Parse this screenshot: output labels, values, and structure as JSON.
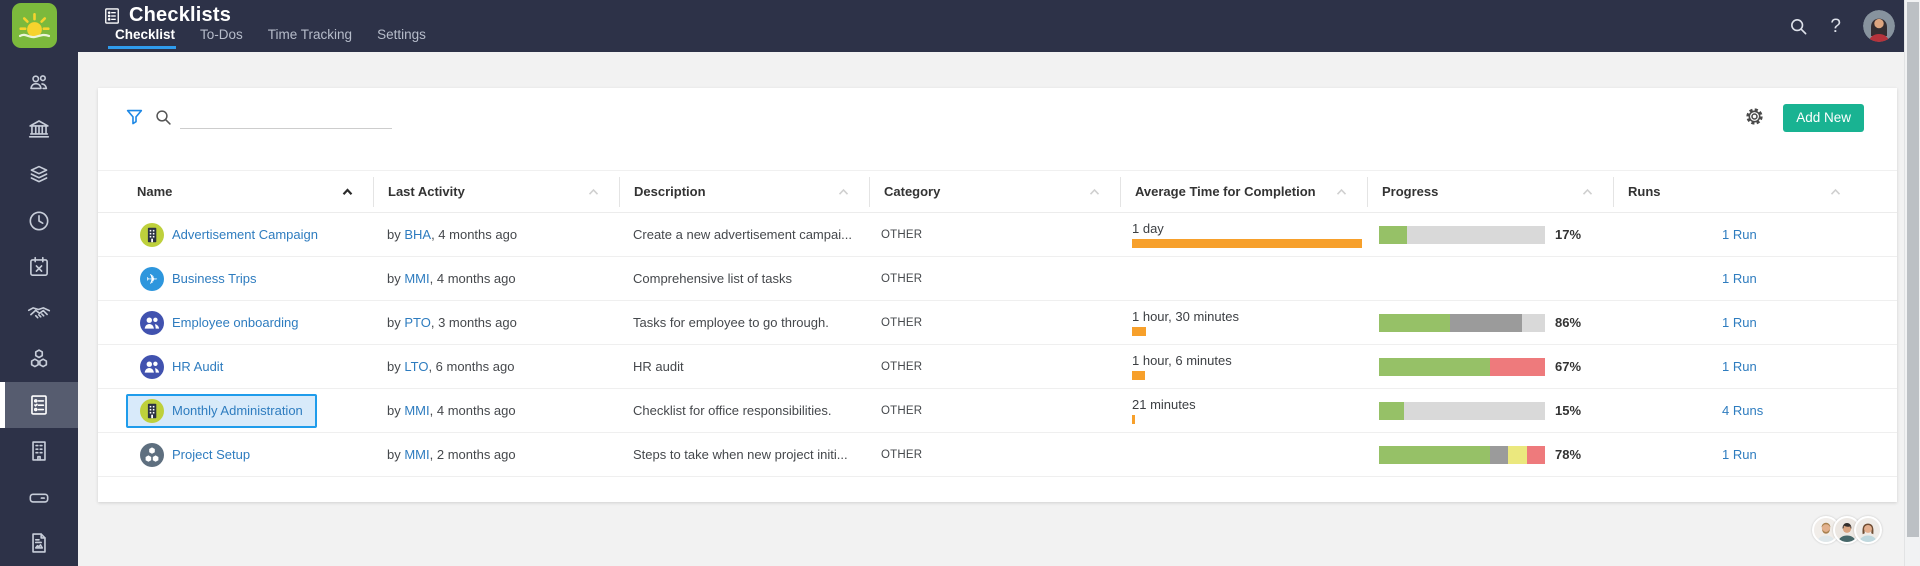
{
  "header": {
    "title": "Checklists",
    "tabs": [
      {
        "label": "Checklist",
        "active": true
      },
      {
        "label": "To-Dos",
        "active": false
      },
      {
        "label": "Time Tracking",
        "active": false
      },
      {
        "label": "Settings",
        "active": false
      }
    ],
    "right_icons": [
      "search-icon",
      "help-icon",
      "user-avatar"
    ],
    "help_glyph": "?"
  },
  "sidebar": {
    "logo_icon": "sun-logo",
    "items": [
      "users",
      "bank",
      "layers",
      "clock",
      "calendar",
      "handshake",
      "cubes",
      "checklists",
      "building",
      "drive",
      "document"
    ],
    "active_item": "checklists"
  },
  "toolbar": {
    "filter_icon": "filter-funnel-icon",
    "search_icon": "search-icon",
    "search_value": "",
    "gear_icon": "settings-gear-icon",
    "add_new_label": "Add New"
  },
  "table": {
    "columns": [
      {
        "label": "Name",
        "sorted": "asc"
      },
      {
        "label": "Last Activity",
        "sorted": null
      },
      {
        "label": "Description",
        "sorted": null
      },
      {
        "label": "Category",
        "sorted": null
      },
      {
        "label": "Average Time for Completion",
        "sorted": null
      },
      {
        "label": "Progress",
        "sorted": null
      },
      {
        "label": "Runs",
        "sorted": null
      }
    ],
    "rows": [
      {
        "name": "Advertisement Campaign",
        "icon": "building",
        "icon_bg": "#bed03c",
        "icon_fg": "#2b3142",
        "activity_by": "by",
        "activity_author": "BHA",
        "activity_rest": ", 4 months ago",
        "description": "Create a new advertisement campai...",
        "category": "OTHER",
        "avg_time": "1 day",
        "avg_bar_pct": 100,
        "progress_label": "17%",
        "progress": [
          [
            "green",
            17
          ],
          [
            "lightgray",
            83
          ]
        ],
        "runs": "1 Run",
        "selected": false
      },
      {
        "name": "Business Trips",
        "icon": "plane",
        "icon_bg": "#2d96dd",
        "icon_fg": "#ffffff",
        "activity_by": "by",
        "activity_author": "MMI",
        "activity_rest": ", 4 months ago",
        "description": "Comprehensive list of tasks",
        "category": "OTHER",
        "avg_time": "",
        "avg_bar_pct": 0,
        "progress_label": "",
        "progress": [],
        "runs": "1 Run",
        "selected": false
      },
      {
        "name": "Employee onboarding",
        "icon": "users",
        "icon_bg": "#4152af",
        "icon_fg": "#ffffff",
        "activity_by": "by",
        "activity_author": "PTO",
        "activity_rest": ", 3 months ago",
        "description": "Tasks for employee to go through.",
        "category": "OTHER",
        "avg_time": "1 hour, 30 minutes",
        "avg_bar_pct": 6,
        "progress_label": "86%",
        "progress": [
          [
            "green",
            43
          ],
          [
            "gray",
            43
          ],
          [
            "lightgray",
            14
          ]
        ],
        "runs": "1 Run",
        "selected": false
      },
      {
        "name": "HR Audit",
        "icon": "users",
        "icon_bg": "#4152af",
        "icon_fg": "#ffffff",
        "activity_by": "by",
        "activity_author": "LTO",
        "activity_rest": ", 6 months ago",
        "description": "HR audit",
        "category": "OTHER",
        "avg_time": "1 hour, 6 minutes",
        "avg_bar_pct": 5.5,
        "progress_label": "67%",
        "progress": [
          [
            "green",
            67
          ],
          [
            "red",
            33
          ]
        ],
        "runs": "1 Run",
        "selected": false
      },
      {
        "name": "Monthly Administration",
        "icon": "building",
        "icon_bg": "#bed03c",
        "icon_fg": "#2b3142",
        "activity_by": "by",
        "activity_author": "MMI",
        "activity_rest": ", 4 months ago",
        "description": "Checklist for office responsibilities.",
        "category": "OTHER",
        "avg_time": "21 minutes",
        "avg_bar_pct": 1.3,
        "progress_label": "15%",
        "progress": [
          [
            "green",
            15
          ],
          [
            "lightgray",
            85
          ]
        ],
        "runs": "4 Runs",
        "selected": true
      },
      {
        "name": "Project Setup",
        "icon": "cubes",
        "icon_bg": "#5e6f7f",
        "icon_fg": "#ffffff",
        "activity_by": "by",
        "activity_author": "MMI",
        "activity_rest": ", 2 months ago",
        "description": "Steps to take when new project initi...",
        "category": "OTHER",
        "avg_time": "",
        "avg_bar_pct": 0,
        "progress_label": "78%",
        "progress": [
          [
            "green",
            67
          ],
          [
            "gray",
            11
          ],
          [
            "yellow",
            11
          ],
          [
            "red",
            11
          ]
        ],
        "runs": "1 Run",
        "selected": false
      }
    ]
  },
  "presence": {
    "avatars": [
      "teammate-1",
      "teammate-2",
      "teammate-3"
    ]
  },
  "colors": {
    "header_navy": "#2d3248",
    "accent_teal": "#19b392",
    "link_blue": "#2e7cbf",
    "tab_underline": "#2f9ced",
    "selection_blue": "#1f9ceb",
    "orange_bar": "#f7a02b",
    "progress_green": "#96c167",
    "progress_gray": "#9b9b9b",
    "progress_lightgray": "#d9d9d9",
    "progress_red": "#ee7a7c",
    "progress_yellow": "#ebe87e"
  }
}
